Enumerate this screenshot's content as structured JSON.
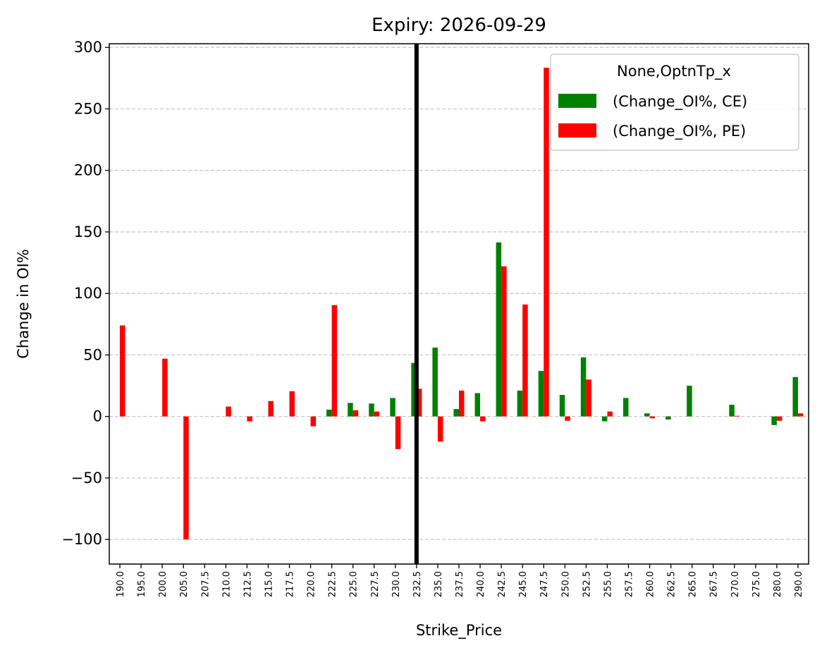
{
  "chart_data": {
    "type": "bar",
    "title": "Expiry: 2026-09-29",
    "xlabel": "Strike_Price",
    "ylabel": "Change in OI%",
    "ylim": [
      -120,
      303
    ],
    "yticks": [
      -100,
      -50,
      0,
      50,
      100,
      150,
      200,
      250,
      300
    ],
    "ytick_labels": [
      "−100",
      "−50",
      "0",
      "50",
      "100",
      "150",
      "200",
      "250",
      "300"
    ],
    "grid": "y-dashed",
    "legend_title": "None,OptnTp_x",
    "legend_position": "top-right",
    "reference_line": {
      "category": "232.5",
      "color": "#000000"
    },
    "categories": [
      "190.0",
      "195.0",
      "200.0",
      "205.0",
      "207.5",
      "210.0",
      "212.5",
      "215.0",
      "217.5",
      "220.0",
      "222.5",
      "225.0",
      "227.5",
      "230.0",
      "232.5",
      "235.0",
      "237.5",
      "240.0",
      "242.5",
      "245.0",
      "247.5",
      "250.0",
      "252.5",
      "255.0",
      "257.5",
      "260.0",
      "262.5",
      "265.0",
      "267.5",
      "270.0",
      "275.0",
      "280.0",
      "290.0"
    ],
    "series": [
      {
        "name": "(Change_OI%, CE)",
        "color": "#008000",
        "values": [
          0,
          0,
          0,
          0,
          0,
          0,
          0,
          0,
          0,
          0,
          5.5,
          11,
          10.5,
          15,
          43.5,
          56,
          6,
          19,
          141.5,
          21,
          37,
          17.5,
          48,
          -4,
          15,
          2.5,
          -2.5,
          25,
          0,
          9.5,
          0,
          -7,
          32
        ]
      },
      {
        "name": "(Change_OI%, PE)",
        "color": "#ff0000",
        "values": [
          74,
          0,
          47,
          -100,
          0,
          8,
          -4,
          12.5,
          20.5,
          -8,
          90.5,
          5,
          4,
          -26.5,
          22.5,
          -20.5,
          21,
          -4,
          122,
          91,
          283.5,
          -3.5,
          30,
          4,
          0,
          -1.5,
          0,
          0,
          0,
          0.5,
          0,
          -3.5,
          2.5
        ]
      }
    ]
  }
}
